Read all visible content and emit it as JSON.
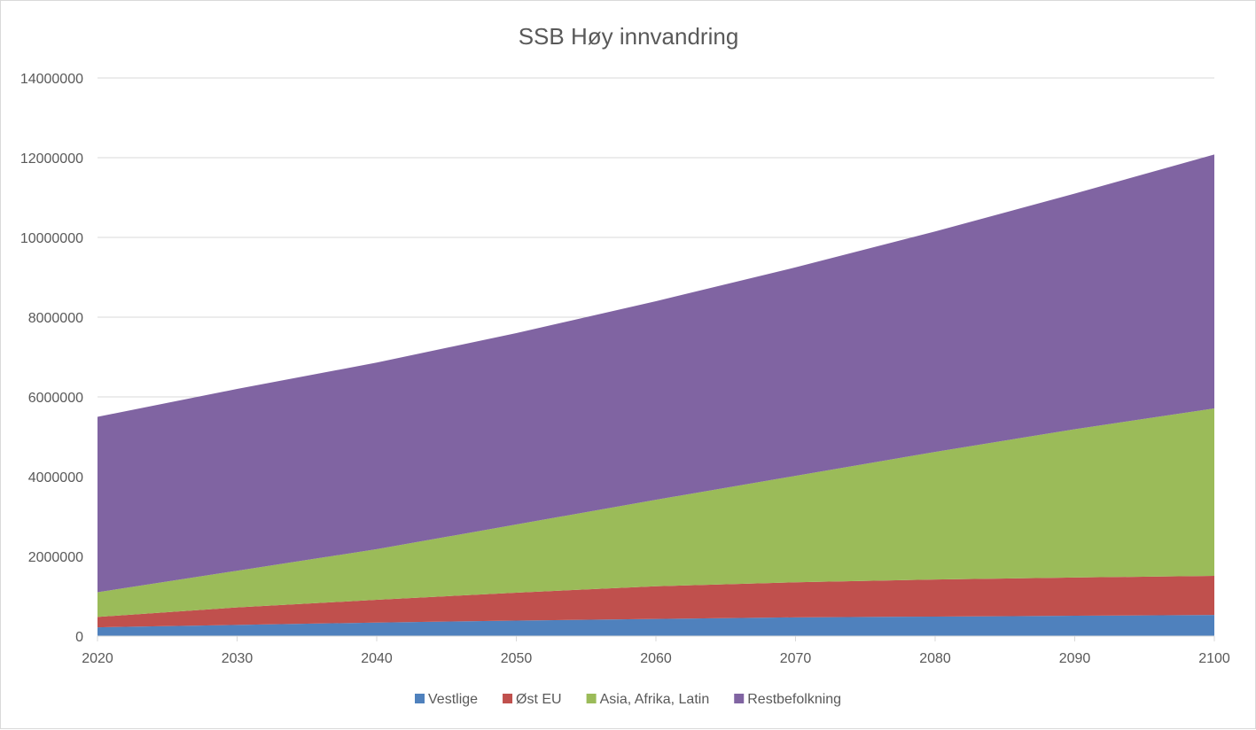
{
  "chart_data": {
    "type": "area",
    "stacked": true,
    "title": "SSB Høy innvandring",
    "xlabel": "",
    "ylabel": "",
    "x": [
      2020,
      2030,
      2040,
      2050,
      2060,
      2070,
      2080,
      2090,
      2100
    ],
    "x_tick_labels": [
      "2020",
      "2030",
      "2040",
      "2050",
      "2060",
      "2070",
      "2080",
      "2090",
      "2100"
    ],
    "xlim": [
      2020,
      2100
    ],
    "ylim": [
      0,
      14000000
    ],
    "y_ticks": [
      0,
      2000000,
      4000000,
      6000000,
      8000000,
      10000000,
      12000000,
      14000000
    ],
    "y_tick_labels": [
      "0",
      "2000000",
      "4000000",
      "6000000",
      "8000000",
      "10000000",
      "12000000",
      "14000000"
    ],
    "grid": true,
    "legend_position": "bottom",
    "series": [
      {
        "name": "Vestlige",
        "color": "#4f81bd",
        "values": [
          220000,
          280000,
          340000,
          390000,
          430000,
          470000,
          490000,
          510000,
          530000
        ]
      },
      {
        "name": "Øst EU",
        "color": "#c0504d",
        "values": [
          260000,
          440000,
          570000,
          700000,
          820000,
          880000,
          930000,
          960000,
          980000
        ]
      },
      {
        "name": "Asia, Afrika, Latin",
        "color": "#9bbb59",
        "values": [
          620000,
          920000,
          1270000,
          1710000,
          2170000,
          2670000,
          3200000,
          3720000,
          4200000
        ]
      },
      {
        "name": "Restbefolkning",
        "color": "#8064a2",
        "values": [
          4400000,
          4560000,
          4680000,
          4800000,
          4980000,
          5230000,
          5530000,
          5910000,
          6370000
        ]
      }
    ]
  }
}
